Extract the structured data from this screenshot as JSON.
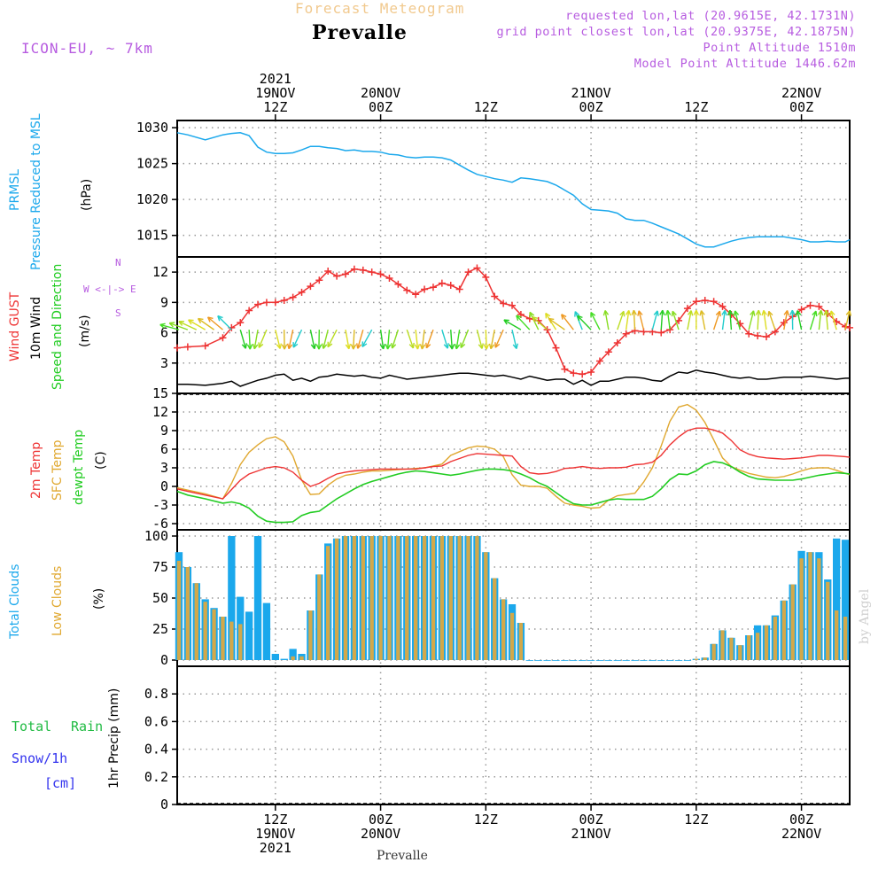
{
  "header": {
    "title_top": "Forecast Meteogram",
    "station": "Prevalle",
    "model": "ICON-EU, ~ 7km",
    "requested": "requested lon,lat (20.9615E, 42.1731N)",
    "grid_point": "grid point closest lon,lat (20.9375E, 42.1875N)",
    "point_altitude": "Point Altitude 1510m",
    "model_altitude": "Model Point Altitude 1446.62m",
    "footer_station": "Prevalle",
    "watermark": "by Angel"
  },
  "time_axis": {
    "top_labels": [
      {
        "lines": [
          "2021",
          "19NOV",
          "12Z"
        ],
        "hour": 12
      },
      {
        "lines": [
          "20NOV",
          "00Z"
        ],
        "hour": 24
      },
      {
        "lines": [
          "12Z"
        ],
        "hour": 36
      },
      {
        "lines": [
          "21NOV",
          "00Z"
        ],
        "hour": 48
      },
      {
        "lines": [
          "12Z"
        ],
        "hour": 60
      },
      {
        "lines": [
          "22NOV",
          "00Z"
        ],
        "hour": 72
      }
    ],
    "bottom_labels": [
      {
        "lines": [
          "12Z",
          "19NOV",
          "2021"
        ],
        "hour": 12
      },
      {
        "lines": [
          "00Z",
          "20NOV"
        ],
        "hour": 24
      },
      {
        "lines": [
          "12Z"
        ],
        "hour": 36
      },
      {
        "lines": [
          "00Z",
          "21NOV"
        ],
        "hour": 48
      },
      {
        "lines": [
          "12Z"
        ],
        "hour": 60
      },
      {
        "lines": [
          "00Z",
          "22NOV"
        ],
        "hour": 72
      }
    ],
    "start_hour": 0.8,
    "end_hour": 77.5
  },
  "panels": {
    "pressure": {
      "label1": "PRMSL",
      "label2": "Pressure Reduced to MSL",
      "unit": "(hPa)"
    },
    "wind": {
      "label1": "Wind GUST",
      "label2": "10m Wind",
      "label3": "Speed and Direction",
      "unit": "(m/s)",
      "compass_n": "N",
      "compass_mid": "W <-|-> E",
      "compass_s": "S"
    },
    "temp": {
      "label1": "2m Temp",
      "label2": "SFC Temp",
      "label3": "dewpt Temp",
      "unit": "(C)"
    },
    "clouds": {
      "label1": "Total Clouds",
      "label2": "Low Clouds",
      "unit": "(%)"
    },
    "precip": {
      "label1": "Total",
      "label1b": "Rain",
      "label2": "Snow/1h",
      "label3": "[cm]",
      "unit": "1hr Precip (mm)"
    }
  },
  "colors": {
    "pressure": "#1ba8ec",
    "gust": "#ee3333",
    "wind": "#000000",
    "t2m": "#ee3333",
    "sfc": "#e0a830",
    "dewpt": "#22cc22",
    "total_cloud": "#1ba8ec",
    "low_cloud": "#d2a84a",
    "rain": "#22bb44",
    "snow": "#3333ee",
    "label_cyan": "#1ba8ec",
    "label_red": "#ee3333",
    "label_green": "#22cc22",
    "label_orange": "#e0a830",
    "label_purple": "#b75ce0"
  },
  "chart_data": [
    {
      "type": "line",
      "title": "PRMSL Pressure Reduced to MSL",
      "ylabel": "hPa",
      "ylim": [
        1012,
        1031
      ],
      "yticks": [
        1015,
        1020,
        1025,
        1030
      ],
      "x": [
        0.8,
        2,
        4,
        6,
        7,
        8,
        9,
        10,
        11,
        12,
        13,
        14,
        15,
        16,
        17,
        18,
        19,
        20,
        21,
        22,
        23,
        24,
        25,
        26,
        27,
        28,
        29,
        30,
        31,
        32,
        33,
        34,
        35,
        36,
        37,
        38,
        39,
        40,
        41,
        42,
        43,
        44,
        45,
        46,
        47,
        48,
        49,
        50,
        51,
        52,
        53,
        54,
        55,
        56,
        57,
        58,
        59,
        60,
        61,
        62,
        63,
        64,
        65,
        66,
        67,
        68,
        69,
        70,
        71,
        72,
        73,
        74,
        75,
        76,
        77,
        77.5
      ],
      "series": [
        {
          "name": "PRMSL",
          "values": [
            1029.3,
            1029.0,
            1028.3,
            1029.0,
            1029.2,
            1029.3,
            1028.9,
            1027.3,
            1026.6,
            1026.4,
            1026.4,
            1026.5,
            1026.9,
            1027.4,
            1027.4,
            1027.2,
            1027.1,
            1026.8,
            1026.9,
            1026.7,
            1026.7,
            1026.6,
            1026.3,
            1026.2,
            1025.9,
            1025.8,
            1025.9,
            1025.9,
            1025.8,
            1025.5,
            1024.8,
            1024.1,
            1023.5,
            1023.2,
            1022.9,
            1022.7,
            1022.4,
            1023.0,
            1022.9,
            1022.7,
            1022.5,
            1022.0,
            1021.3,
            1020.6,
            1019.4,
            1018.6,
            1018.5,
            1018.4,
            1018.1,
            1017.3,
            1017.1,
            1017.1,
            1016.7,
            1016.2,
            1015.7,
            1015.2,
            1014.5,
            1013.8,
            1013.4,
            1013.4,
            1013.8,
            1014.2,
            1014.5,
            1014.7,
            1014.8,
            1014.8,
            1014.8,
            1014.8,
            1014.6,
            1014.4,
            1014.1,
            1014.1,
            1014.2,
            1014.1,
            1014.1,
            1014.4
          ]
        }
      ]
    },
    {
      "type": "line",
      "title": "Wind GUST / 10m Wind Speed and Direction",
      "ylabel": "m/s",
      "ylim": [
        0,
        13.5
      ],
      "yticks": [
        3,
        6,
        9,
        12
      ],
      "x": [
        0.8,
        2,
        4,
        6,
        7,
        8,
        9,
        10,
        11,
        12,
        13,
        14,
        15,
        16,
        17,
        18,
        19,
        20,
        21,
        22,
        23,
        24,
        25,
        26,
        27,
        28,
        29,
        30,
        31,
        32,
        33,
        34,
        35,
        36,
        37,
        38,
        39,
        40,
        41,
        42,
        43,
        44,
        45,
        46,
        47,
        48,
        49,
        50,
        51,
        52,
        53,
        54,
        55,
        56,
        57,
        58,
        59,
        60,
        61,
        62,
        63,
        64,
        65,
        66,
        67,
        68,
        69,
        70,
        71,
        72,
        73,
        74,
        75,
        76,
        77,
        77.5
      ],
      "series": [
        {
          "name": "Wind GUST",
          "values": [
            4.5,
            4.6,
            4.7,
            5.5,
            6.5,
            7.0,
            8.2,
            8.8,
            9.0,
            9.0,
            9.2,
            9.5,
            10.0,
            10.6,
            11.2,
            12.1,
            11.6,
            11.8,
            12.3,
            12.2,
            12.0,
            11.8,
            11.4,
            10.8,
            10.2,
            9.8,
            10.3,
            10.5,
            10.9,
            10.7,
            10.3,
            12.0,
            12.4,
            11.5,
            9.6,
            8.9,
            8.7,
            7.8,
            7.4,
            7.2,
            6.3,
            4.5,
            2.4,
            2.0,
            1.9,
            2.1,
            3.2,
            4.1,
            5.0,
            5.9,
            6.2,
            6.1,
            6.1,
            6.0,
            6.3,
            7.2,
            8.4,
            9.1,
            9.2,
            9.1,
            8.6,
            7.8,
            6.9,
            5.9,
            5.7,
            5.6,
            6.1,
            7.0,
            7.6,
            8.3,
            8.7,
            8.6,
            7.9,
            7.1,
            6.6,
            6.5
          ]
        },
        {
          "name": "10m Wind",
          "values": [
            0.9,
            0.9,
            0.8,
            1.0,
            1.2,
            0.7,
            1.0,
            1.3,
            1.5,
            1.8,
            1.9,
            1.3,
            1.5,
            1.2,
            1.6,
            1.7,
            1.9,
            1.8,
            1.7,
            1.8,
            1.6,
            1.5,
            1.8,
            1.6,
            1.4,
            1.5,
            1.6,
            1.7,
            1.8,
            1.9,
            2.0,
            2.0,
            1.9,
            1.8,
            1.7,
            1.8,
            1.6,
            1.4,
            1.7,
            1.5,
            1.3,
            1.4,
            1.4,
            0.9,
            1.3,
            0.8,
            1.2,
            1.2,
            1.4,
            1.6,
            1.6,
            1.5,
            1.3,
            1.2,
            1.7,
            2.1,
            2.0,
            2.3,
            2.1,
            2.0,
            1.8,
            1.6,
            1.5,
            1.6,
            1.4,
            1.4,
            1.5,
            1.6,
            1.6,
            1.6,
            1.7,
            1.6,
            1.5,
            1.4,
            1.5,
            1.5
          ]
        }
      ]
    },
    {
      "type": "line",
      "title": "2m Temp / SFC Temp / dewpt Temp",
      "ylabel": "C",
      "ylim": [
        -7,
        15
      ],
      "yticks": [
        -6,
        -3,
        0,
        3,
        6,
        9,
        12,
        15
      ],
      "x": [
        0.8,
        2,
        4,
        6,
        7,
        8,
        9,
        10,
        11,
        12,
        13,
        14,
        15,
        16,
        17,
        18,
        19,
        20,
        21,
        22,
        23,
        24,
        25,
        26,
        27,
        28,
        29,
        30,
        31,
        32,
        33,
        34,
        35,
        36,
        37,
        38,
        39,
        40,
        41,
        42,
        43,
        44,
        45,
        46,
        47,
        48,
        49,
        50,
        51,
        52,
        53,
        54,
        55,
        56,
        57,
        58,
        59,
        60,
        61,
        62,
        63,
        64,
        65,
        66,
        67,
        68,
        69,
        70,
        71,
        72,
        73,
        74,
        75,
        76,
        77,
        77.5
      ],
      "series": [
        {
          "name": "2m Temp",
          "values": [
            -0.4,
            -0.8,
            -1.4,
            -2.0,
            -0.5,
            1.0,
            2.0,
            2.5,
            3.0,
            3.2,
            3.0,
            2.3,
            1.0,
            0.0,
            0.5,
            1.3,
            2.0,
            2.3,
            2.5,
            2.6,
            2.7,
            2.8,
            2.8,
            2.8,
            2.8,
            2.8,
            3.0,
            3.2,
            3.3,
            4.0,
            4.5,
            5.0,
            5.3,
            5.2,
            5.1,
            5.0,
            4.9,
            3.2,
            2.2,
            2.0,
            2.1,
            2.4,
            2.9,
            3.0,
            3.2,
            3.0,
            2.9,
            3.0,
            3.0,
            3.1,
            3.5,
            3.6,
            3.9,
            5.0,
            6.7,
            8.0,
            9.0,
            9.4,
            9.4,
            9.1,
            8.6,
            7.4,
            5.9,
            5.2,
            4.8,
            4.6,
            4.5,
            4.4,
            4.5,
            4.6,
            4.8,
            5.0,
            5.0,
            4.9,
            4.8,
            4.7
          ]
        },
        {
          "name": "SFC Temp",
          "values": [
            -0.2,
            -0.6,
            -1.2,
            -2.0,
            0.5,
            3.5,
            5.5,
            6.7,
            7.7,
            8.0,
            7.2,
            4.9,
            1.0,
            -1.3,
            -1.2,
            0.2,
            1.2,
            1.8,
            2.0,
            2.3,
            2.5,
            2.5,
            2.6,
            2.7,
            2.8,
            2.9,
            3.0,
            3.3,
            3.6,
            5.0,
            5.6,
            6.2,
            6.5,
            6.4,
            6.0,
            4.8,
            1.9,
            0.2,
            0.0,
            0.0,
            -0.3,
            -1.6,
            -2.7,
            -3.0,
            -3.2,
            -3.5,
            -3.4,
            -2.2,
            -1.5,
            -1.3,
            -1.1,
            0.7,
            3.0,
            6.5,
            10.5,
            12.8,
            13.2,
            12.3,
            10.3,
            7.5,
            4.6,
            3.2,
            2.6,
            2.1,
            1.8,
            1.5,
            1.4,
            1.6,
            2.0,
            2.5,
            2.9,
            3.0,
            3.0,
            2.6,
            2.1,
            1.9
          ]
        },
        {
          "name": "dewpt Temp",
          "values": [
            -0.8,
            -1.4,
            -2.0,
            -2.7,
            -2.5,
            -2.8,
            -3.5,
            -4.8,
            -5.6,
            -5.8,
            -5.8,
            -5.7,
            -4.7,
            -4.2,
            -4.0,
            -3.0,
            -2.0,
            -1.2,
            -0.4,
            0.3,
            0.8,
            1.2,
            1.6,
            2.0,
            2.3,
            2.5,
            2.4,
            2.2,
            2.0,
            1.8,
            2.0,
            2.3,
            2.6,
            2.8,
            2.8,
            2.7,
            2.5,
            2.0,
            1.4,
            0.6,
            0.0,
            -1.0,
            -2.0,
            -2.8,
            -3.0,
            -3.0,
            -2.6,
            -2.2,
            -2.0,
            -2.1,
            -2.1,
            -2.1,
            -1.6,
            -0.4,
            1.1,
            2.0,
            1.9,
            2.5,
            3.5,
            4.0,
            3.8,
            3.2,
            2.3,
            1.6,
            1.2,
            1.1,
            1.0,
            1.0,
            1.0,
            1.2,
            1.5,
            1.8,
            2.0,
            2.2,
            2.1,
            2.0
          ]
        }
      ]
    },
    {
      "type": "bar",
      "title": "Total Clouds / Low Clouds",
      "ylabel": "%",
      "ylim": [
        -5,
        105
      ],
      "yticks": [
        0,
        25,
        50,
        75,
        100
      ],
      "x": [
        1,
        2,
        3,
        4,
        5,
        6,
        7,
        8,
        9,
        10,
        11,
        12,
        13,
        14,
        15,
        16,
        17,
        18,
        19,
        20,
        21,
        22,
        23,
        24,
        25,
        26,
        27,
        28,
        29,
        30,
        31,
        32,
        33,
        34,
        35,
        36,
        37,
        38,
        39,
        40,
        41,
        42,
        43,
        44,
        45,
        46,
        47,
        48,
        49,
        50,
        51,
        52,
        53,
        54,
        55,
        56,
        57,
        58,
        59,
        60,
        61,
        62,
        63,
        64,
        65,
        66,
        67,
        68,
        69,
        70,
        71,
        72,
        73,
        74,
        75,
        76,
        77
      ],
      "series": [
        {
          "name": "Total Clouds",
          "values": [
            87,
            75,
            62,
            49,
            42,
            35,
            100,
            51,
            39,
            100,
            46,
            5,
            1,
            9,
            5,
            40,
            69,
            94,
            98,
            100,
            100,
            100,
            100,
            100,
            100,
            100,
            100,
            100,
            100,
            100,
            100,
            100,
            100,
            100,
            100,
            87,
            66,
            49,
            45,
            30,
            0,
            0,
            0,
            0,
            0,
            0,
            0,
            0,
            0,
            0,
            0,
            0,
            0,
            0,
            0,
            0,
            0,
            0,
            0,
            1,
            2,
            13,
            24,
            18,
            12,
            20,
            28,
            28,
            36,
            48,
            61,
            88,
            87,
            87,
            65,
            98,
            97
          ]
        },
        {
          "name": "Low Clouds",
          "values": [
            80,
            75,
            62,
            47,
            41,
            35,
            31,
            29,
            0,
            0,
            0,
            0,
            0,
            3,
            3,
            40,
            69,
            92,
            98,
            100,
            100,
            100,
            100,
            100,
            100,
            100,
            100,
            100,
            100,
            100,
            100,
            100,
            100,
            100,
            100,
            87,
            66,
            49,
            38,
            30,
            0,
            0,
            0,
            0,
            0,
            0,
            0,
            0,
            0,
            0,
            0,
            0,
            0,
            0,
            0,
            0,
            0,
            0,
            0,
            1,
            2,
            13,
            24,
            18,
            12,
            20,
            22,
            28,
            35,
            48,
            61,
            82,
            87,
            82,
            63,
            40,
            35
          ]
        }
      ]
    },
    {
      "type": "bar",
      "title": "1hr Precip",
      "ylabel": "1hr Precip (mm)",
      "ylim": [
        0,
        1.0
      ],
      "yticks": [
        0,
        0.2,
        0.4,
        0.6,
        0.8
      ],
      "series": [
        {
          "name": "Total Rain",
          "values": []
        },
        {
          "name": "Snow/1h",
          "values": []
        }
      ]
    }
  ]
}
